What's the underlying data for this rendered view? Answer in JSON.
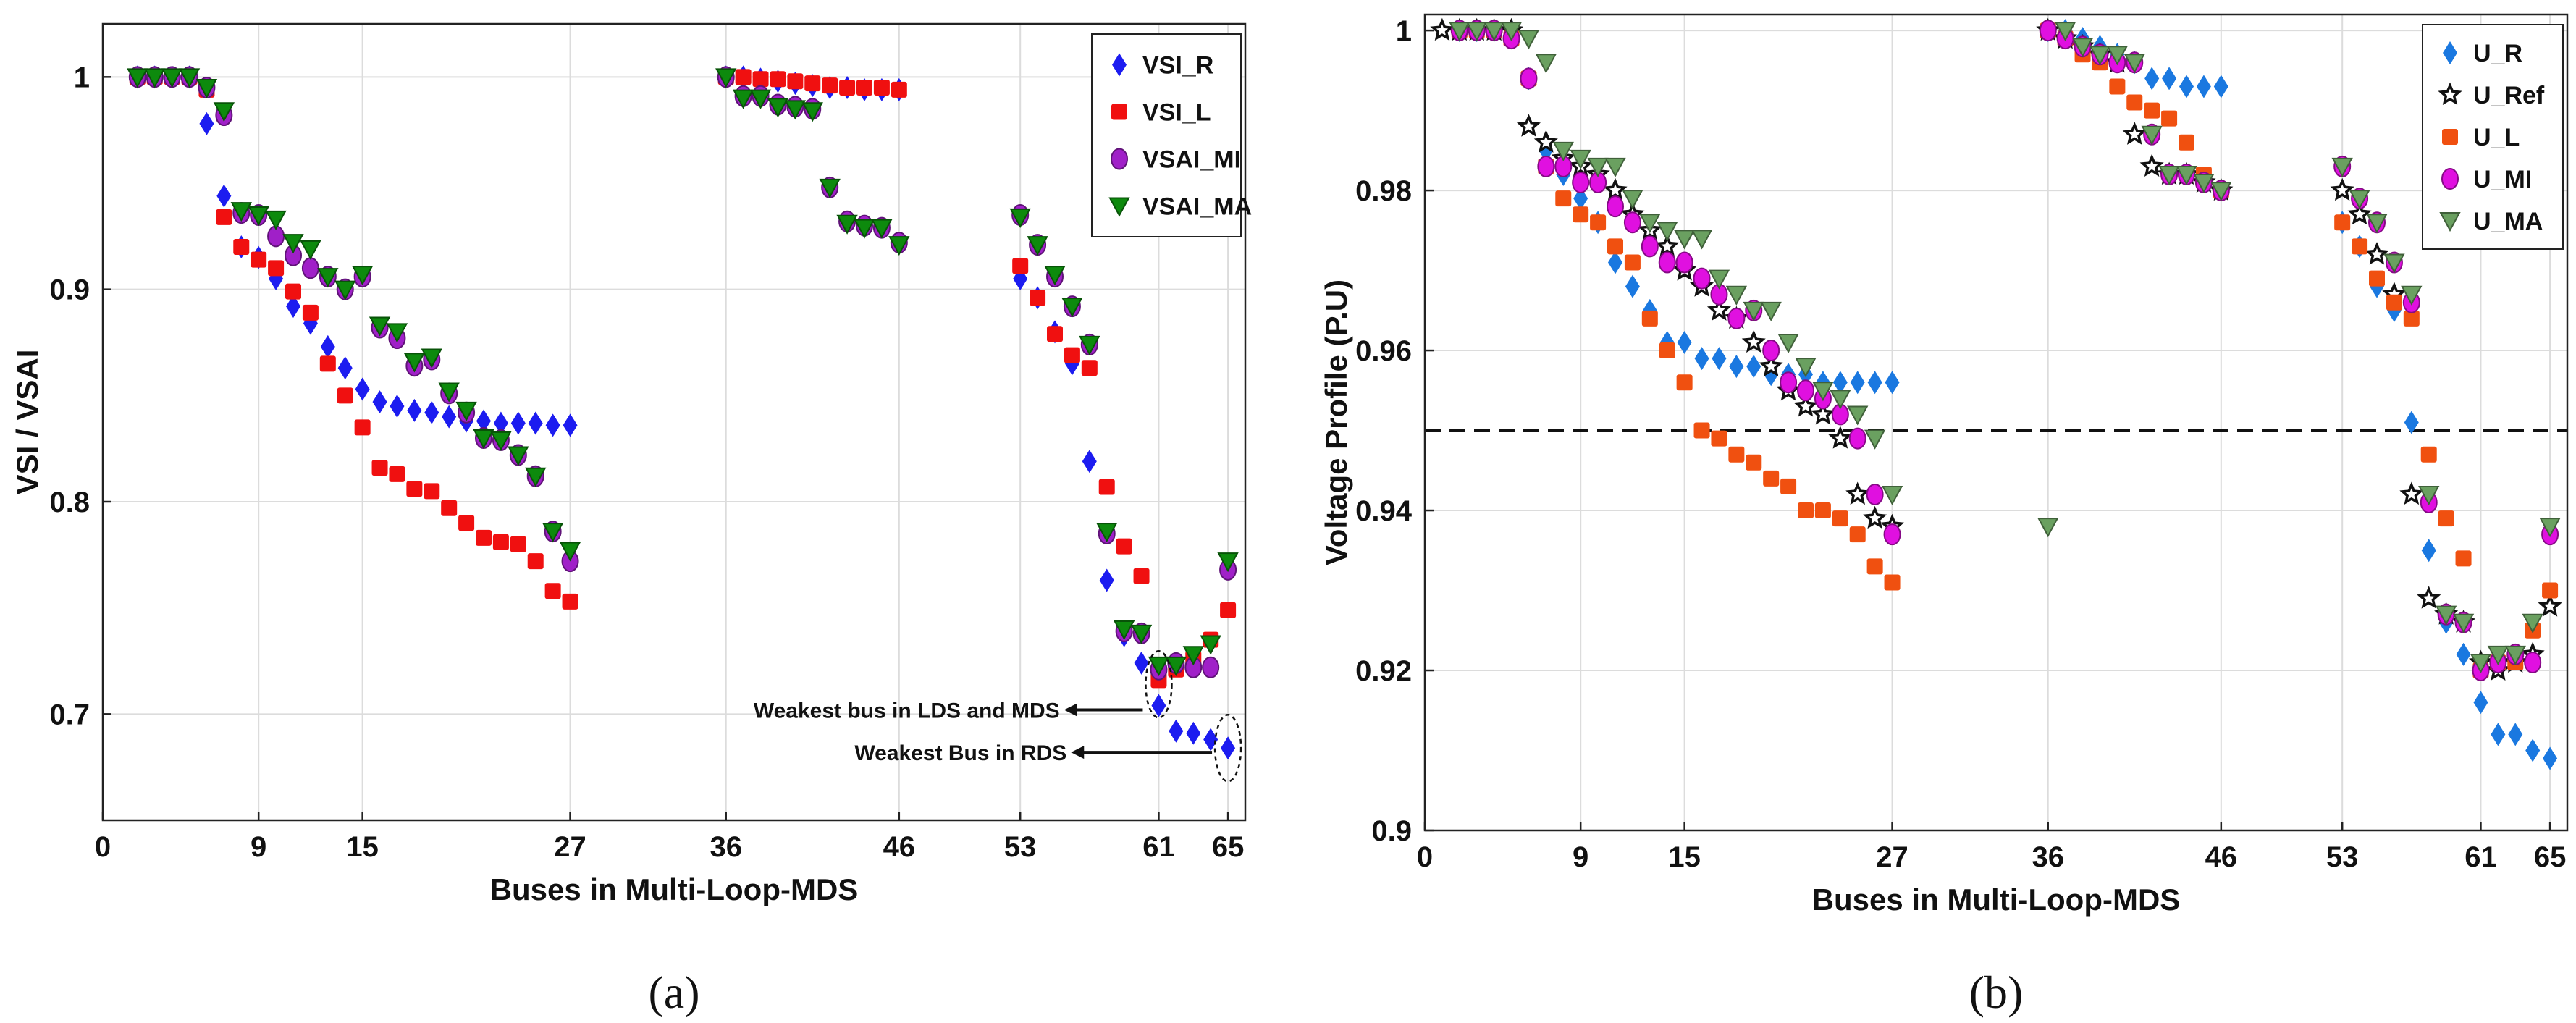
{
  "chart_data": [
    {
      "type": "scatter",
      "panel_label": "(a)",
      "xlabel": "Buses in Multi-Loop-MDS",
      "ylabel": "VSI / VSAI",
      "xlim": [
        0,
        66
      ],
      "ylim": [
        0.65,
        1.025
      ],
      "xticks": [
        0,
        9,
        15,
        27,
        36,
        46,
        53,
        61,
        65
      ],
      "yticks": [
        0.7,
        0.8,
        0.9,
        1
      ],
      "ytick_labels": [
        "0.7",
        "0.8",
        "0.9",
        "1"
      ],
      "grid": true,
      "legend_position": "top-right",
      "series": [
        {
          "name": "VSI_R",
          "marker": "diamond",
          "color": "#1c1cf0",
          "x": [
            2,
            3,
            4,
            5,
            6,
            7,
            8,
            9,
            10,
            11,
            12,
            13,
            14,
            15,
            16,
            17,
            18,
            19,
            20,
            21,
            22,
            23,
            24,
            25,
            26,
            27,
            36,
            37,
            38,
            39,
            40,
            41,
            42,
            43,
            44,
            45,
            46,
            53,
            54,
            55,
            56,
            57,
            58,
            59,
            60,
            61,
            62,
            63,
            64,
            65
          ],
          "y": [
            1.0,
            1.0,
            1.0,
            1.0,
            0.978,
            0.944,
            0.92,
            0.915,
            0.905,
            0.892,
            0.884,
            0.873,
            0.863,
            0.853,
            0.847,
            0.845,
            0.843,
            0.842,
            0.84,
            0.838,
            0.838,
            0.837,
            0.837,
            0.837,
            0.836,
            0.836,
            1.0,
            1.0,
            0.999,
            0.998,
            0.997,
            0.996,
            0.995,
            0.995,
            0.994,
            0.994,
            0.994,
            0.905,
            0.896,
            0.88,
            0.865,
            0.819,
            0.763,
            0.737,
            0.724,
            0.704,
            0.692,
            0.691,
            0.688,
            0.684
          ]
        },
        {
          "name": "VSI_L",
          "marker": "square",
          "color": "#f01010",
          "x": [
            2,
            3,
            4,
            5,
            6,
            7,
            8,
            9,
            10,
            11,
            12,
            13,
            14,
            15,
            16,
            17,
            18,
            19,
            20,
            21,
            22,
            23,
            24,
            25,
            26,
            27,
            36,
            37,
            38,
            39,
            40,
            41,
            42,
            43,
            44,
            45,
            46,
            53,
            54,
            55,
            56,
            57,
            58,
            59,
            60,
            61,
            62,
            63,
            64,
            65
          ],
          "y": [
            1.0,
            1.0,
            1.0,
            1.0,
            0.994,
            0.934,
            0.92,
            0.914,
            0.91,
            0.899,
            0.889,
            0.865,
            0.85,
            0.835,
            0.816,
            0.813,
            0.806,
            0.805,
            0.797,
            0.79,
            0.783,
            0.781,
            0.78,
            0.772,
            0.758,
            0.753,
            1.0,
            1.0,
            0.999,
            0.999,
            0.998,
            0.997,
            0.996,
            0.995,
            0.995,
            0.995,
            0.994,
            0.911,
            0.896,
            0.879,
            0.869,
            0.863,
            0.807,
            0.779,
            0.765,
            0.716,
            0.721,
            0.726,
            0.735,
            0.749
          ]
        },
        {
          "name": "VSAI_MI",
          "marker": "circle",
          "color": "#a020c8",
          "x": [
            2,
            3,
            4,
            5,
            6,
            7,
            8,
            9,
            10,
            11,
            12,
            13,
            14,
            15,
            16,
            17,
            18,
            19,
            20,
            21,
            22,
            23,
            24,
            25,
            26,
            27,
            36,
            37,
            38,
            39,
            40,
            41,
            42,
            43,
            44,
            45,
            46,
            53,
            54,
            55,
            56,
            57,
            58,
            59,
            60,
            61,
            62,
            63,
            64,
            65
          ],
          "y": [
            1.0,
            1.0,
            1.0,
            1.0,
            0.995,
            0.982,
            0.936,
            0.935,
            0.925,
            0.916,
            0.91,
            0.906,
            0.9,
            0.906,
            0.882,
            0.877,
            0.864,
            0.867,
            0.851,
            0.842,
            0.83,
            0.829,
            0.822,
            0.812,
            0.786,
            0.772,
            1.0,
            0.991,
            0.991,
            0.987,
            0.986,
            0.985,
            0.948,
            0.932,
            0.93,
            0.929,
            0.922,
            0.935,
            0.921,
            0.906,
            0.892,
            0.874,
            0.785,
            0.739,
            0.738,
            0.721,
            0.724,
            0.722,
            0.722,
            0.768
          ]
        },
        {
          "name": "VSAI_MA",
          "marker": "triangle-down",
          "color": "#0d8a0d",
          "x": [
            2,
            3,
            4,
            5,
            6,
            7,
            8,
            9,
            10,
            11,
            12,
            13,
            14,
            15,
            16,
            17,
            18,
            19,
            20,
            21,
            22,
            23,
            24,
            25,
            26,
            27,
            36,
            37,
            38,
            39,
            40,
            41,
            42,
            43,
            44,
            45,
            46,
            53,
            54,
            55,
            56,
            57,
            58,
            59,
            60,
            61,
            62,
            63,
            64,
            65
          ],
          "y": [
            1.0,
            1.0,
            1.0,
            1.0,
            0.995,
            0.984,
            0.937,
            0.935,
            0.933,
            0.922,
            0.919,
            0.906,
            0.9,
            0.907,
            0.883,
            0.88,
            0.866,
            0.868,
            0.852,
            0.843,
            0.83,
            0.829,
            0.822,
            0.812,
            0.786,
            0.777,
            1.0,
            0.99,
            0.99,
            0.986,
            0.985,
            0.984,
            0.948,
            0.931,
            0.929,
            0.929,
            0.921,
            0.934,
            0.921,
            0.907,
            0.892,
            0.874,
            0.786,
            0.74,
            0.738,
            0.723,
            0.723,
            0.728,
            0.733,
            0.772
          ]
        }
      ],
      "annotations": [
        {
          "text": "Weakest bus in LDS and MDS",
          "bus": 61,
          "value": 0.71
        },
        {
          "text": "Weakest Bus in RDS",
          "bus": 65,
          "value": 0.685
        }
      ]
    },
    {
      "type": "scatter",
      "panel_label": "(b)",
      "xlabel": "Buses in Multi-Loop-MDS",
      "ylabel": "Voltage Profile (P.U)",
      "xlim": [
        0,
        66
      ],
      "ylim": [
        0.9,
        1.002
      ],
      "xticks": [
        0,
        9,
        15,
        27,
        36,
        46,
        53,
        61,
        65
      ],
      "yticks": [
        0.9,
        0.92,
        0.94,
        0.96,
        0.98,
        1
      ],
      "ytick_labels": [
        "0.9",
        "0.92",
        "0.94",
        "0.96",
        "0.98",
        "1"
      ],
      "grid": true,
      "legend_position": "top-right",
      "reference_line": 0.95,
      "series": [
        {
          "name": "U_R",
          "marker": "diamond",
          "color": "#1a78e0",
          "x": [
            2,
            3,
            4,
            5,
            6,
            7,
            8,
            9,
            10,
            11,
            12,
            13,
            14,
            15,
            16,
            17,
            18,
            19,
            20,
            21,
            22,
            23,
            24,
            25,
            26,
            27,
            36,
            37,
            38,
            39,
            40,
            41,
            42,
            43,
            44,
            45,
            46,
            53,
            54,
            55,
            56,
            57,
            58,
            59,
            60,
            61,
            62,
            63,
            64,
            65
          ],
          "y": [
            1.0,
            1.0,
            1.0,
            1.0,
            0.994,
            0.985,
            0.982,
            0.979,
            0.976,
            0.971,
            0.968,
            0.965,
            0.961,
            0.961,
            0.959,
            0.959,
            0.958,
            0.958,
            0.957,
            0.957,
            0.957,
            0.956,
            0.956,
            0.956,
            0.956,
            0.956,
            1.0,
            1.0,
            0.999,
            0.998,
            0.997,
            0.996,
            0.994,
            0.994,
            0.993,
            0.993,
            0.993,
            0.976,
            0.973,
            0.968,
            0.965,
            0.951,
            0.935,
            0.926,
            0.922,
            0.916,
            0.912,
            0.912,
            0.91,
            0.909
          ]
        },
        {
          "name": "U_Ref",
          "marker": "star",
          "color": "#111111",
          "x": [
            1,
            2,
            3,
            4,
            5,
            6,
            7,
            8,
            9,
            10,
            11,
            12,
            13,
            14,
            15,
            16,
            17,
            18,
            19,
            20,
            21,
            22,
            23,
            24,
            25,
            26,
            27,
            36,
            37,
            38,
            39,
            40,
            41,
            42,
            43,
            44,
            45,
            46,
            53,
            54,
            55,
            56,
            57,
            58,
            59,
            60,
            61,
            62,
            63,
            64,
            65
          ],
          "y": [
            1.0,
            1.0,
            1.0,
            1.0,
            1.0,
            0.988,
            0.986,
            0.984,
            0.983,
            0.982,
            0.98,
            0.977,
            0.975,
            0.973,
            0.97,
            0.968,
            0.965,
            0.964,
            0.961,
            0.958,
            0.955,
            0.953,
            0.952,
            0.949,
            0.942,
            0.939,
            0.938,
            1.0,
            0.999,
            0.998,
            0.997,
            0.996,
            0.987,
            0.983,
            0.982,
            0.982,
            0.981,
            0.98,
            0.98,
            0.977,
            0.972,
            0.967,
            0.942,
            0.929,
            0.927,
            0.926,
            0.921,
            0.92,
            0.921,
            0.922,
            0.928
          ]
        },
        {
          "name": "U_L",
          "marker": "square",
          "color": "#f05010",
          "x": [
            2,
            3,
            4,
            5,
            6,
            7,
            8,
            9,
            10,
            11,
            12,
            13,
            14,
            15,
            16,
            17,
            18,
            19,
            20,
            21,
            22,
            23,
            24,
            25,
            26,
            27,
            36,
            37,
            38,
            39,
            40,
            41,
            42,
            43,
            44,
            45,
            46,
            53,
            54,
            55,
            56,
            57,
            58,
            59,
            60,
            61,
            62,
            63,
            64,
            65
          ],
          "y": [
            1.0,
            1.0,
            1.0,
            0.999,
            0.994,
            0.983,
            0.979,
            0.977,
            0.976,
            0.973,
            0.971,
            0.964,
            0.96,
            0.956,
            0.95,
            0.949,
            0.947,
            0.946,
            0.944,
            0.943,
            0.94,
            0.94,
            0.939,
            0.937,
            0.933,
            0.931,
            1.0,
            0.999,
            0.997,
            0.996,
            0.993,
            0.991,
            0.99,
            0.989,
            0.986,
            0.982,
            0.98,
            0.976,
            0.973,
            0.969,
            0.966,
            0.964,
            0.947,
            0.939,
            0.934,
            0.92,
            0.921,
            0.921,
            0.925,
            0.93
          ]
        },
        {
          "name": "U_MI",
          "marker": "circle",
          "color": "#e010e0",
          "x": [
            2,
            3,
            4,
            5,
            6,
            7,
            8,
            9,
            10,
            11,
            12,
            13,
            14,
            15,
            16,
            17,
            18,
            19,
            20,
            21,
            22,
            23,
            24,
            25,
            26,
            27,
            36,
            37,
            38,
            39,
            40,
            41,
            42,
            43,
            44,
            45,
            46,
            53,
            54,
            55,
            56,
            57,
            58,
            59,
            60,
            61,
            62,
            63,
            64,
            65
          ],
          "y": [
            1.0,
            1.0,
            1.0,
            0.999,
            0.994,
            0.983,
            0.983,
            0.981,
            0.981,
            0.978,
            0.976,
            0.973,
            0.971,
            0.971,
            0.969,
            0.967,
            0.964,
            0.965,
            0.96,
            0.956,
            0.955,
            0.954,
            0.952,
            0.949,
            0.942,
            0.937,
            1.0,
            0.999,
            0.998,
            0.997,
            0.996,
            0.996,
            0.987,
            0.982,
            0.982,
            0.981,
            0.98,
            0.983,
            0.979,
            0.976,
            0.971,
            0.966,
            0.941,
            0.927,
            0.926,
            0.92,
            0.921,
            0.922,
            0.921,
            0.937
          ]
        },
        {
          "name": "U_MA",
          "marker": "triangle-down",
          "color": "#6aa060",
          "x": [
            2,
            3,
            4,
            5,
            6,
            7,
            8,
            9,
            10,
            11,
            12,
            13,
            14,
            15,
            16,
            17,
            18,
            19,
            20,
            21,
            22,
            23,
            24,
            25,
            26,
            27,
            36,
            37,
            38,
            39,
            40,
            41,
            42,
            43,
            44,
            45,
            46,
            53,
            54,
            55,
            56,
            57,
            58,
            59,
            60,
            61,
            62,
            63,
            64,
            65
          ],
          "y": [
            1.0,
            1.0,
            1.0,
            1.0,
            0.999,
            0.996,
            0.985,
            0.984,
            0.983,
            0.983,
            0.979,
            0.976,
            0.975,
            0.974,
            0.974,
            0.969,
            0.967,
            0.965,
            0.965,
            0.961,
            0.958,
            0.955,
            0.954,
            0.952,
            0.949,
            0.942,
            0.938,
            1.0,
            0.998,
            0.997,
            0.997,
            0.996,
            0.987,
            0.982,
            0.982,
            0.981,
            0.98,
            0.983,
            0.979,
            0.976,
            0.971,
            0.967,
            0.942,
            0.927,
            0.926,
            0.921,
            0.922,
            0.922,
            0.926,
            0.938
          ]
        }
      ]
    }
  ]
}
